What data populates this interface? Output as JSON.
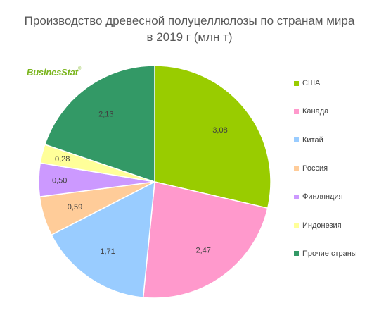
{
  "chart_data": {
    "type": "pie",
    "title": "Производство древесной полуцеллюлозы по странам мира",
    "subtitle": "в 2019 г (млн т)",
    "categories": [
      "США",
      "Канада",
      "Китай",
      "Россия",
      "Финляндия",
      "Индонезия",
      "Прочие страны"
    ],
    "values": [
      3.08,
      2.47,
      1.71,
      0.59,
      0.5,
      0.28,
      2.13
    ],
    "value_labels": [
      "3,08",
      "2,47",
      "1,71",
      "0,59",
      "0,50",
      "0,28",
      "2,13"
    ],
    "colors": [
      "#99cc00",
      "#ff99cc",
      "#99ccff",
      "#ffcc99",
      "#cc99ff",
      "#ffff99",
      "#339966"
    ],
    "start_angle": "12 o'clock, clockwise",
    "legend_position": "right"
  },
  "logo": {
    "text": "BusinesStat",
    "mark": "®"
  }
}
